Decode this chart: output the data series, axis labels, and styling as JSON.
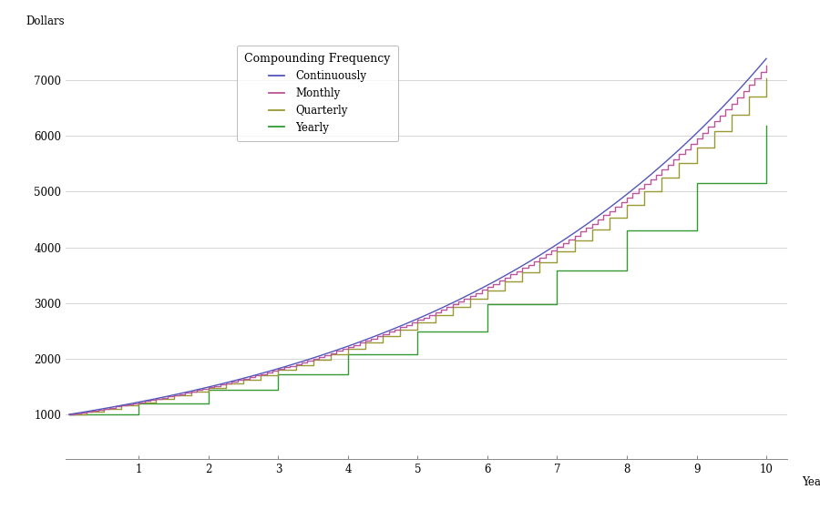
{
  "principal": 1000,
  "rate": 0.2,
  "years": 10,
  "colors": {
    "continuously": "#5555bb",
    "monthly": "#bb5599",
    "quarterly": "#999933",
    "yearly": "#339933"
  },
  "legend_title": "Compounding Frequency",
  "legend_labels": [
    "Continuously",
    "Monthly",
    "Quarterly",
    "Yearly"
  ],
  "ylabel": "Dollars",
  "xlabel": "Years",
  "ylim": [
    200,
    7800
  ],
  "xlim": [
    -0.05,
    10.3
  ],
  "yticks": [
    1000,
    2000,
    3000,
    4000,
    5000,
    6000,
    7000
  ],
  "xticks": [
    1,
    2,
    3,
    4,
    5,
    6,
    7,
    8,
    9,
    10
  ],
  "axis_fontsize": 8.5,
  "legend_fontsize": 8.5,
  "tick_fontsize": 8.5,
  "background_color": "#ffffff",
  "grid_color": "#d0d0d0",
  "line_width": 1.0
}
